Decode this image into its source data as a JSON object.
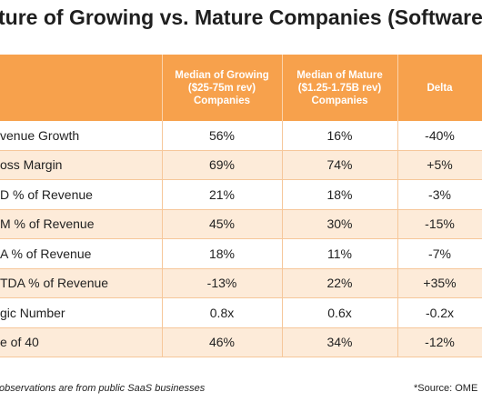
{
  "header": {
    "title": "ture of Growing vs. Mature Companies (Software"
  },
  "table": {
    "columns": [
      "Median of Growing ($25-75m rev) Companies",
      "Median of Mature ($1.25-1.75B rev) Companies",
      "Delta"
    ],
    "rows": [
      [
        "venue Growth",
        "56%",
        "16%",
        "-40%"
      ],
      [
        "oss Margin",
        "69%",
        "74%",
        "+5%"
      ],
      [
        "D % of Revenue",
        "21%",
        "18%",
        "-3%"
      ],
      [
        "M % of Revenue",
        "45%",
        "30%",
        "-15%"
      ],
      [
        "A % of Revenue",
        "18%",
        "11%",
        "-7%"
      ],
      [
        "TDA % of Revenue",
        "-13%",
        "22%",
        "+35%"
      ],
      [
        "gic Number",
        "0.8x",
        "0.6x",
        "-0.2x"
      ],
      [
        "e of 40",
        "46%",
        "34%",
        "-12%"
      ]
    ]
  },
  "footer": {
    "note": "observations are from public SaaS businesses",
    "source": "*Source: OME"
  }
}
